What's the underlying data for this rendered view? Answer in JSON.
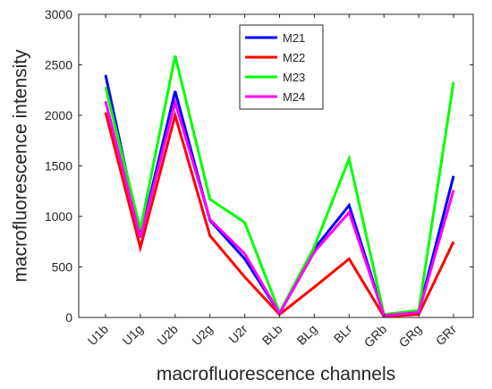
{
  "chart_data": {
    "type": "line",
    "title": "",
    "xlabel": "macrofluorescence channels",
    "ylabel": "macrofluorescence intensity",
    "categories": [
      "U1b",
      "U1g",
      "U2b",
      "U2g",
      "U2r",
      "BLb",
      "BLg",
      "BLr",
      "GRb",
      "GRg",
      "GRr"
    ],
    "ylim": [
      0,
      3000
    ],
    "yticks": [
      0,
      500,
      1000,
      1500,
      2000,
      2500,
      3000
    ],
    "grid": false,
    "legend_position": "top-center",
    "series": [
      {
        "name": "M21",
        "color": "#0000ff",
        "values": [
          2400,
          800,
          2240,
          960,
          580,
          40,
          680,
          1110,
          20,
          60,
          1400
        ]
      },
      {
        "name": "M22",
        "color": "#ff0000",
        "values": [
          2030,
          690,
          2000,
          810,
          400,
          30,
          300,
          580,
          10,
          30,
          750
        ]
      },
      {
        "name": "M23",
        "color": "#00ff00",
        "values": [
          2280,
          870,
          2590,
          1170,
          940,
          50,
          700,
          1570,
          30,
          70,
          2330
        ]
      },
      {
        "name": "M24",
        "color": "#ff00ff",
        "values": [
          2140,
          790,
          2130,
          970,
          630,
          40,
          650,
          1040,
          20,
          50,
          1260
        ]
      }
    ]
  }
}
